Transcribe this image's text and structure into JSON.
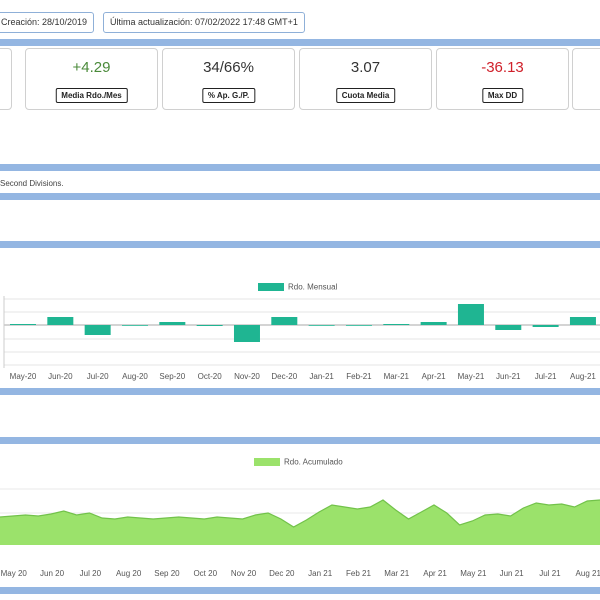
{
  "header": {
    "created": "Creación: 28/10/2019",
    "updated": "Última actualización: 07/02/2022 17:48 GMT+1"
  },
  "stats": [
    {
      "value": "+4.29",
      "label": "Media Rdo./Mes",
      "color": "#4a8a3a"
    },
    {
      "value": "34/66%",
      "label": "% Ap. G./P.",
      "color": "#333333"
    },
    {
      "value": "3.07",
      "label": "Cuota Media",
      "color": "#333333"
    },
    {
      "value": "-36.13",
      "label": "Max DD",
      "color": "#d0202a"
    }
  ],
  "note": "Second Divisions.",
  "chart_data": [
    {
      "type": "bar",
      "legend": "Rdo. Mensual",
      "color": "#1fb592",
      "categories": [
        "May-20",
        "Jun-20",
        "Jul-20",
        "Aug-20",
        "Sep-20",
        "Oct-20",
        "Nov-20",
        "Dec-20",
        "Jan-21",
        "Feb-21",
        "Mar-21",
        "Apr-21",
        "May-21",
        "Jun-21",
        "Jul-21",
        "Aug-21"
      ],
      "values": [
        1,
        8,
        -10,
        0,
        3,
        -1,
        -17,
        8,
        0,
        0,
        1,
        3,
        21,
        -5,
        -2,
        8
      ],
      "ylim": [
        -40,
        25
      ]
    },
    {
      "type": "area",
      "legend": "Rdo. Acumulado",
      "color": "#9be26b",
      "line_color": "#72c24a",
      "categories": [
        null,
        "May 20",
        null,
        null,
        "Jun 20",
        null,
        null,
        "Jul 20",
        null,
        null,
        "Aug 20",
        null,
        null,
        "Sep 20",
        null,
        null,
        "Oct 20",
        null,
        null,
        "Nov 20",
        null,
        null,
        "Dec 20",
        null,
        null,
        "Jan 21",
        null,
        null,
        "Feb 21",
        null,
        null,
        "Mar 21",
        null,
        null,
        "Apr 21",
        null,
        null,
        "May 21",
        null,
        null,
        "Jun 21",
        null,
        null,
        "Jul 21",
        null,
        null,
        "Aug 21",
        null
      ],
      "values": [
        28,
        29,
        30,
        29,
        31,
        34,
        30,
        32,
        27,
        26,
        28,
        27,
        26,
        27,
        28,
        27,
        26,
        28,
        27,
        26,
        30,
        32,
        26,
        18,
        25,
        33,
        40,
        38,
        36,
        38,
        45,
        35,
        26,
        33,
        40,
        32,
        20,
        24,
        30,
        31,
        29,
        37,
        42,
        40,
        41,
        38,
        44,
        45
      ],
      "ylim": [
        0,
        60
      ]
    }
  ]
}
